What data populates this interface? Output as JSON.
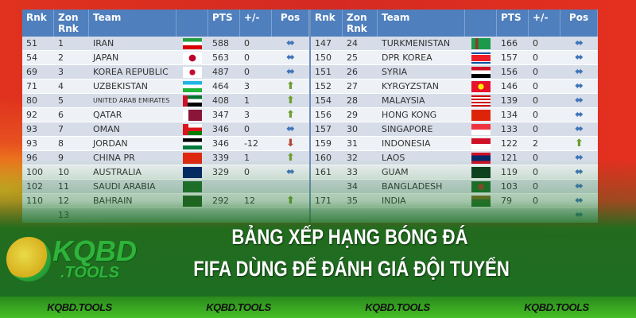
{
  "headers": {
    "rnk": "Rnk",
    "zon": "Zon Rnk",
    "team": "Team",
    "pts": "PTS",
    "diff": "+/-",
    "pos": "Pos"
  },
  "left_rows": [
    {
      "rnk": "51",
      "zon": "1",
      "team": "IRAN",
      "flag": "iran",
      "pts": "588",
      "diff": "0",
      "pos": "same"
    },
    {
      "rnk": "54",
      "zon": "2",
      "team": "JAPAN",
      "flag": "japan",
      "pts": "563",
      "diff": "0",
      "pos": "same"
    },
    {
      "rnk": "69",
      "zon": "3",
      "team": "KOREA REPUBLIC",
      "flag": "korea",
      "pts": "487",
      "diff": "0",
      "pos": "same"
    },
    {
      "rnk": "71",
      "zon": "4",
      "team": "UZBEKISTAN",
      "flag": "uzbekistan",
      "pts": "464",
      "diff": "3",
      "pos": "up"
    },
    {
      "rnk": "80",
      "zon": "5",
      "team": "UNITED ARAB EMIRATES",
      "flag": "uae",
      "pts": "408",
      "diff": "1",
      "pos": "up"
    },
    {
      "rnk": "92",
      "zon": "6",
      "team": "QATAR",
      "flag": "qatar",
      "pts": "347",
      "diff": "3",
      "pos": "up"
    },
    {
      "rnk": "93",
      "zon": "7",
      "team": "OMAN",
      "flag": "oman",
      "pts": "346",
      "diff": "0",
      "pos": "same"
    },
    {
      "rnk": "93",
      "zon": "8",
      "team": "JORDAN",
      "flag": "jordan",
      "pts": "346",
      "diff": "-12",
      "pos": "down"
    },
    {
      "rnk": "96",
      "zon": "9",
      "team": "CHINA PR",
      "flag": "china",
      "pts": "339",
      "diff": "1",
      "pos": "up"
    },
    {
      "rnk": "100",
      "zon": "10",
      "team": "AUSTRALIA",
      "flag": "australia",
      "pts": "329",
      "diff": "0",
      "pos": "same"
    },
    {
      "rnk": "102",
      "zon": "11",
      "team": "SAUDI ARABIA",
      "flag": "saudi",
      "pts": "",
      "diff": "",
      "pos": ""
    },
    {
      "rnk": "110",
      "zon": "12",
      "team": "BAHRAIN",
      "flag": "bahrain",
      "pts": "292",
      "diff": "12",
      "pos": "up"
    },
    {
      "rnk": "",
      "zon": "13",
      "team": "",
      "flag": "",
      "pts": "",
      "diff": "",
      "pos": ""
    }
  ],
  "right_rows": [
    {
      "rnk": "147",
      "zon": "24",
      "team": "TURKMENISTAN",
      "flag": "turkmenistan",
      "pts": "166",
      "diff": "0",
      "pos": "same"
    },
    {
      "rnk": "150",
      "zon": "25",
      "team": "DPR KOREA",
      "flag": "dprk",
      "pts": "157",
      "diff": "0",
      "pos": "same"
    },
    {
      "rnk": "151",
      "zon": "26",
      "team": "SYRIA",
      "flag": "syria",
      "pts": "156",
      "diff": "0",
      "pos": "same"
    },
    {
      "rnk": "152",
      "zon": "27",
      "team": "KYRGYZSTAN",
      "flag": "kyrgyzstan",
      "pts": "146",
      "diff": "0",
      "pos": "same"
    },
    {
      "rnk": "154",
      "zon": "28",
      "team": "MALAYSIA",
      "flag": "malaysia",
      "pts": "139",
      "diff": "0",
      "pos": "same"
    },
    {
      "rnk": "156",
      "zon": "29",
      "team": "HONG KONG",
      "flag": "hongkong",
      "pts": "134",
      "diff": "0",
      "pos": "same"
    },
    {
      "rnk": "157",
      "zon": "30",
      "team": "SINGAPORE",
      "flag": "singapore",
      "pts": "133",
      "diff": "0",
      "pos": "same"
    },
    {
      "rnk": "159",
      "zon": "31",
      "team": "INDONESIA",
      "flag": "indonesia",
      "pts": "122",
      "diff": "2",
      "pos": "up"
    },
    {
      "rnk": "160",
      "zon": "32",
      "team": "LAOS",
      "flag": "laos",
      "pts": "121",
      "diff": "0",
      "pos": "same"
    },
    {
      "rnk": "161",
      "zon": "33",
      "team": "GUAM",
      "flag": "guam",
      "pts": "119",
      "diff": "0",
      "pos": "same"
    },
    {
      "rnk": "",
      "zon": "34",
      "team": "BANGLADESH",
      "flag": "bangladesh",
      "pts": "103",
      "diff": "0",
      "pos": "same"
    },
    {
      "rnk": "171",
      "zon": "35",
      "team": "INDIA",
      "flag": "india",
      "pts": "79",
      "diff": "0",
      "pos": "same"
    },
    {
      "rnk": "",
      "zon": "",
      "team": "",
      "flag": "",
      "pts": "",
      "diff": "",
      "pos": "same"
    }
  ],
  "flag_colors": {
    "iran": "linear-gradient(#239f40 33%,#fff 33% 66%,#da0000 66%)",
    "japan": "radial-gradient(circle,#bc002d 30%,#fff 32%)",
    "korea": "radial-gradient(circle,#c60c30 25%,#fff 27%)",
    "uzbekistan": "linear-gradient(#1eb5e6 33%,#fff 33% 66%,#1eb53a 66%)",
    "uae": "linear-gradient(90deg,#ce1126 25%,transparent 25%),linear-gradient(#00732f 33%,#fff 33% 66%,#000 66%)",
    "qatar": "linear-gradient(90deg,#fff 30%,#8a1538 30%)",
    "oman": "linear-gradient(90deg,#db161b 30%,transparent 30%),linear-gradient(#fff 33%,#db161b 33% 66%,#008000 66%)",
    "jordan": "linear-gradient(#000 33%,#fff 33% 66%,#007a3d 66%)",
    "china": "#de2910",
    "australia": "#012169",
    "saudi": "#1d6b2b",
    "bahrain": "#1e5a20",
    "turkmenistan": "linear-gradient(90deg,#1a9a4a 20%,#8b3a2a 20% 35%,#1a9a4a 35%)",
    "dprk": "linear-gradient(#024fa2 15%,#fff 15% 20%,#ed1c27 20% 80%,#fff 80% 85%,#024fa2 85%)",
    "syria": "linear-gradient(#ce1126 33%,#fff 33% 66%,#000 66%)",
    "kyrgyzstan": "radial-gradient(circle,#ffef00 25%,#e8112d 27%)",
    "malaysia": "repeating-linear-gradient(#cc0001 0 2px,#fff 2px 4px)",
    "hongkong": "#de2408",
    "singapore": "linear-gradient(#ef3340 50%,#fff 50%)",
    "indonesia": "linear-gradient(#ce1126 50%,#fff 50%)",
    "laos": "linear-gradient(#ce1126 25%,#002868 25% 75%,#ce1126 75%)",
    "guam": "#0b3a1d",
    "bangladesh": "radial-gradient(circle,#a03a2a 25%,#1d6b2b 27%)",
    "india": "linear-gradient(#7a6a2a 33%,#2a6a2a 33% 66%,#1d6b2b 66%)"
  },
  "overlay": {
    "title_line1": "BẢNG XẾP HẠNG BÓNG ĐÁ",
    "title_line2": "FIFA DÙNG ĐỂ ĐÁNH GIÁ ĐỘI TUYỂN"
  },
  "logo": {
    "main": "KQBD",
    "sub": ".TOOLS"
  },
  "footer": [
    "KQBD.TOOLS",
    "KQBD.TOOLS",
    "KQBD.TOOLS",
    "KQBD.TOOLS"
  ],
  "arrows": {
    "same": "⬌",
    "up": "⬆",
    "down": "⬇"
  }
}
